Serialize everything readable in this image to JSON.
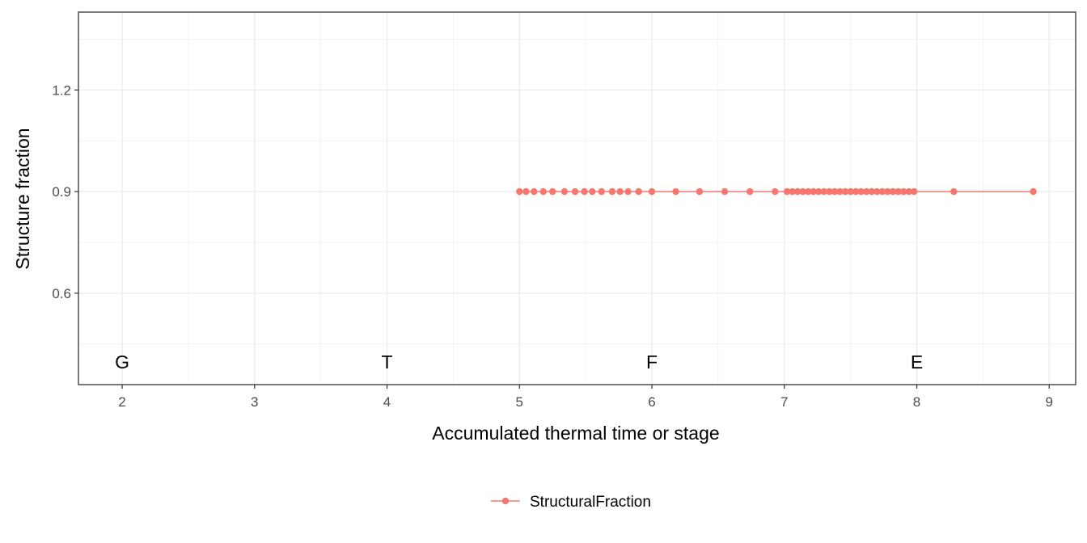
{
  "chart_data": {
    "type": "line",
    "title": "",
    "xlabel": "Accumulated thermal time or stage",
    "ylabel": "Structure fraction",
    "xlim": [
      1.67,
      9.2
    ],
    "ylim": [
      0.33,
      1.43
    ],
    "xticks": [
      2,
      3,
      4,
      5,
      6,
      7,
      8,
      9
    ],
    "yticks": [
      0.6,
      0.9,
      1.2
    ],
    "xtick_labels": [
      "2",
      "3",
      "4",
      "5",
      "6",
      "7",
      "8",
      "9"
    ],
    "ytick_labels": [
      "0.6",
      "0.9",
      "1.2"
    ],
    "grid": true,
    "legend_position": "bottom",
    "stage_labels": [
      {
        "x": 2,
        "label": "G"
      },
      {
        "x": 4,
        "label": "T"
      },
      {
        "x": 6,
        "label": "F"
      },
      {
        "x": 8,
        "label": "E"
      }
    ],
    "series": [
      {
        "name": "StructuralFraction",
        "color": "#F8766D",
        "x": [
          5.0,
          5.05,
          5.11,
          5.18,
          5.25,
          5.34,
          5.42,
          5.49,
          5.55,
          5.62,
          5.7,
          5.76,
          5.82,
          5.9,
          6.0,
          6.18,
          6.36,
          6.55,
          6.74,
          6.93,
          7.02,
          7.06,
          7.1,
          7.14,
          7.18,
          7.22,
          7.26,
          7.3,
          7.34,
          7.38,
          7.42,
          7.46,
          7.5,
          7.54,
          7.58,
          7.62,
          7.66,
          7.7,
          7.74,
          7.78,
          7.82,
          7.86,
          7.9,
          7.94,
          7.98,
          8.28,
          8.88
        ],
        "y": [
          0.9,
          0.9,
          0.9,
          0.9,
          0.9,
          0.9,
          0.9,
          0.9,
          0.9,
          0.9,
          0.9,
          0.9,
          0.9,
          0.9,
          0.9,
          0.9,
          0.9,
          0.9,
          0.9,
          0.9,
          0.9,
          0.9,
          0.9,
          0.9,
          0.9,
          0.9,
          0.9,
          0.9,
          0.9,
          0.9,
          0.9,
          0.9,
          0.9,
          0.9,
          0.9,
          0.9,
          0.9,
          0.9,
          0.9,
          0.9,
          0.9,
          0.9,
          0.9,
          0.9,
          0.9,
          0.9,
          0.9
        ]
      }
    ]
  }
}
